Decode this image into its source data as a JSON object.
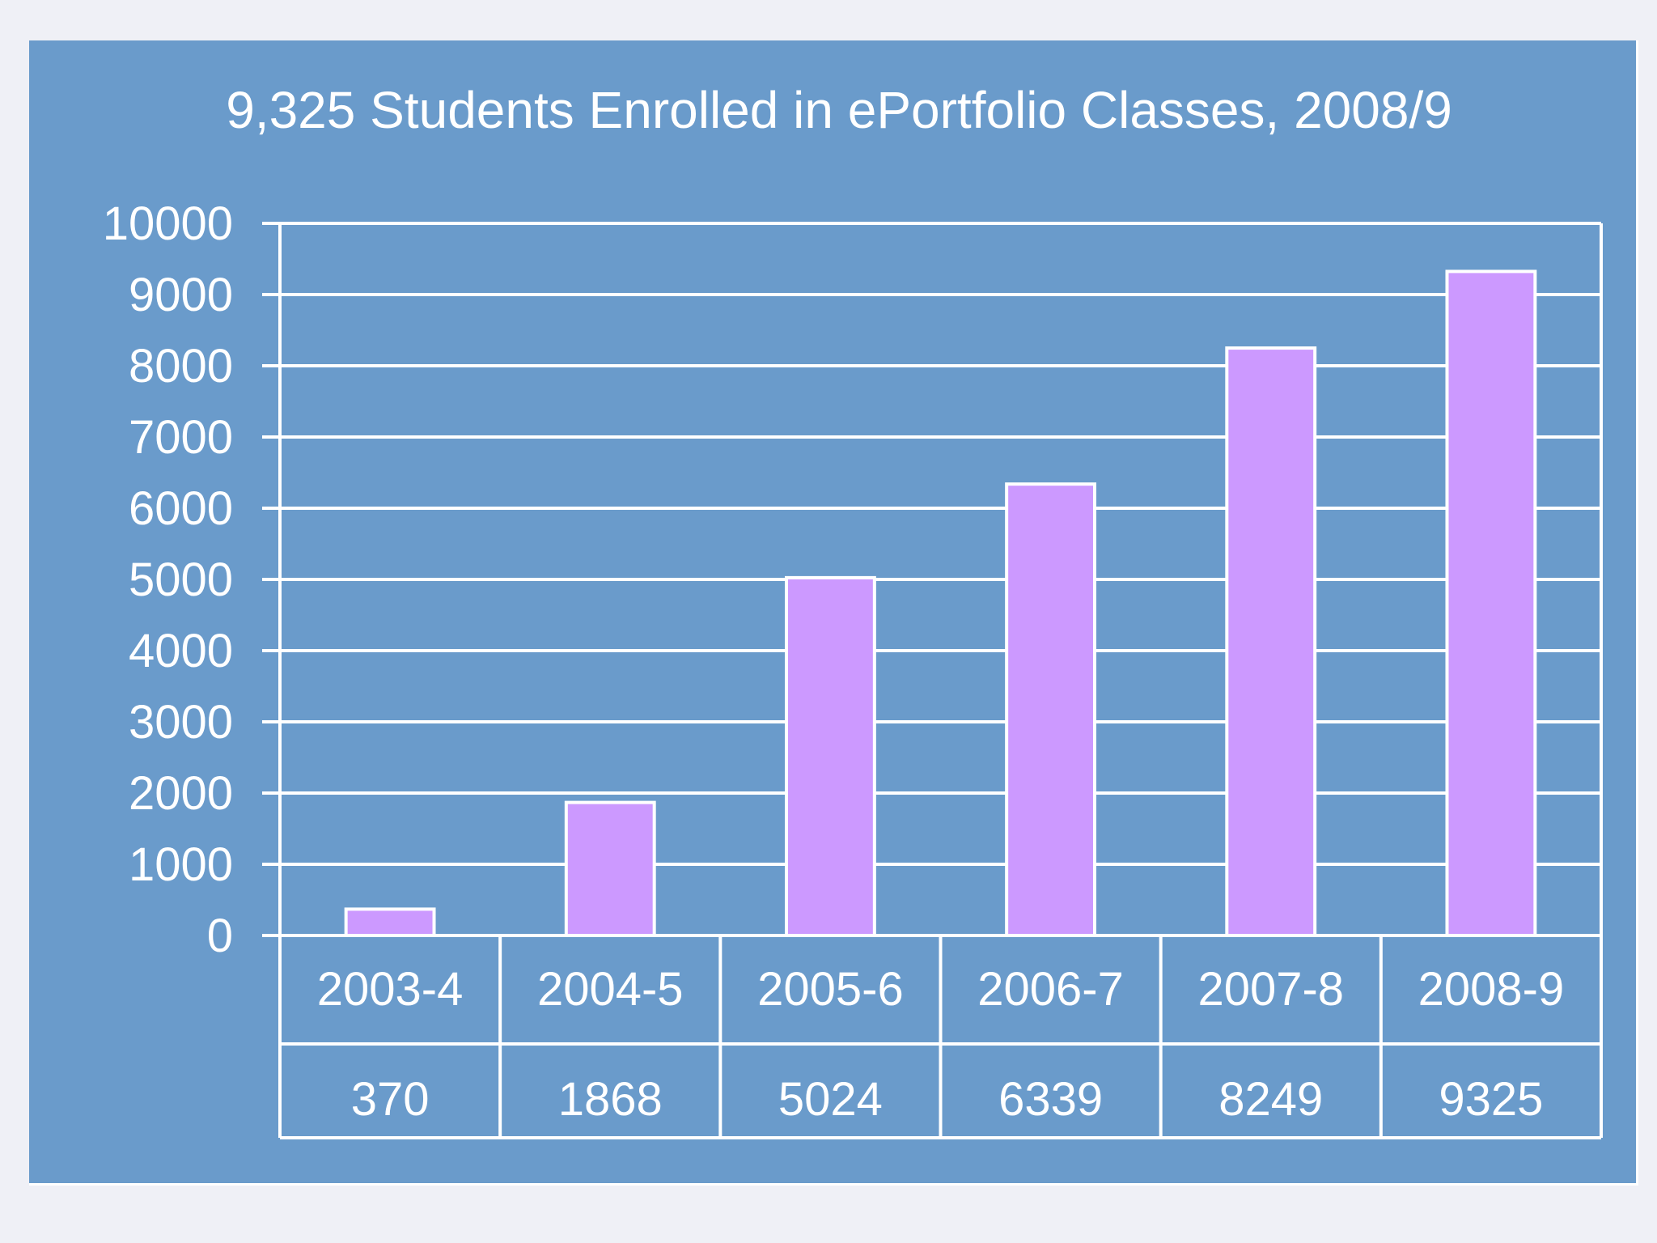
{
  "chart_data": {
    "type": "bar",
    "title": "9,325 Students Enrolled in ePortfolio Classes, 2008/9",
    "categories": [
      "2003-4",
      "2004-5",
      "2005-6",
      "2006-7",
      "2007-8",
      "2008-9"
    ],
    "values": [
      370,
      1868,
      5024,
      6339,
      8249,
      9325
    ],
    "data_table": [
      "370",
      "1868",
      "5024",
      "6339",
      "8249",
      "9325"
    ],
    "ylim": [
      0,
      10000
    ],
    "yticks": [
      0,
      1000,
      2000,
      3000,
      4000,
      5000,
      6000,
      7000,
      8000,
      9000,
      10000
    ],
    "xlabel": "",
    "ylabel": "",
    "grid": true,
    "legend": "none"
  },
  "colors": {
    "background": "#6a9bcb",
    "bar": "#cc99ff",
    "lines": "#ffffff",
    "text": "#ffffff"
  }
}
